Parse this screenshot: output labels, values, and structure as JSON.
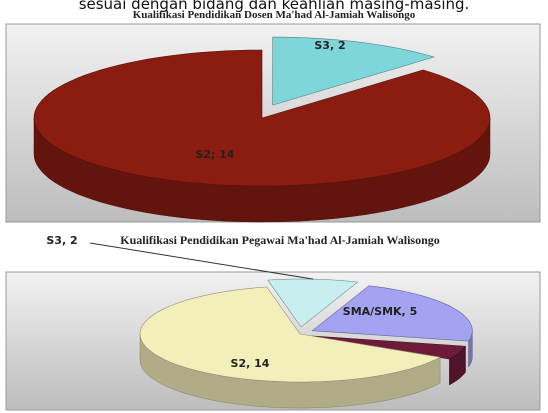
{
  "document": {
    "text": "sesuai dengan bidang dan keahlian masing-masing."
  },
  "chart_data": [
    {
      "type": "pie",
      "title": "Kualifikasi Pendidikan Dosen Ma'had Al-Jamiah Walisongo",
      "categories": [
        "S3",
        "S2"
      ],
      "values": [
        2,
        14
      ],
      "value_labels": [
        "S3, 2",
        "S2; 14"
      ],
      "colors": [
        "#7fd6da",
        "#8a1c10"
      ]
    },
    {
      "type": "pie",
      "title": "Kualifikasi Pendidikan Pegawai Ma'had Al-Jamiah Walisongo",
      "categories": [
        "S3",
        "SMA/SMK",
        null,
        "S2"
      ],
      "values": [
        2,
        5,
        1,
        14
      ],
      "value_labels": [
        "S3, 2",
        "SMA/SMK, 5",
        null,
        "S2, 14"
      ],
      "colors": [
        "#c9eef0",
        "#a3a3f2",
        "#6e1b3a",
        "#f3efbb"
      ]
    }
  ]
}
